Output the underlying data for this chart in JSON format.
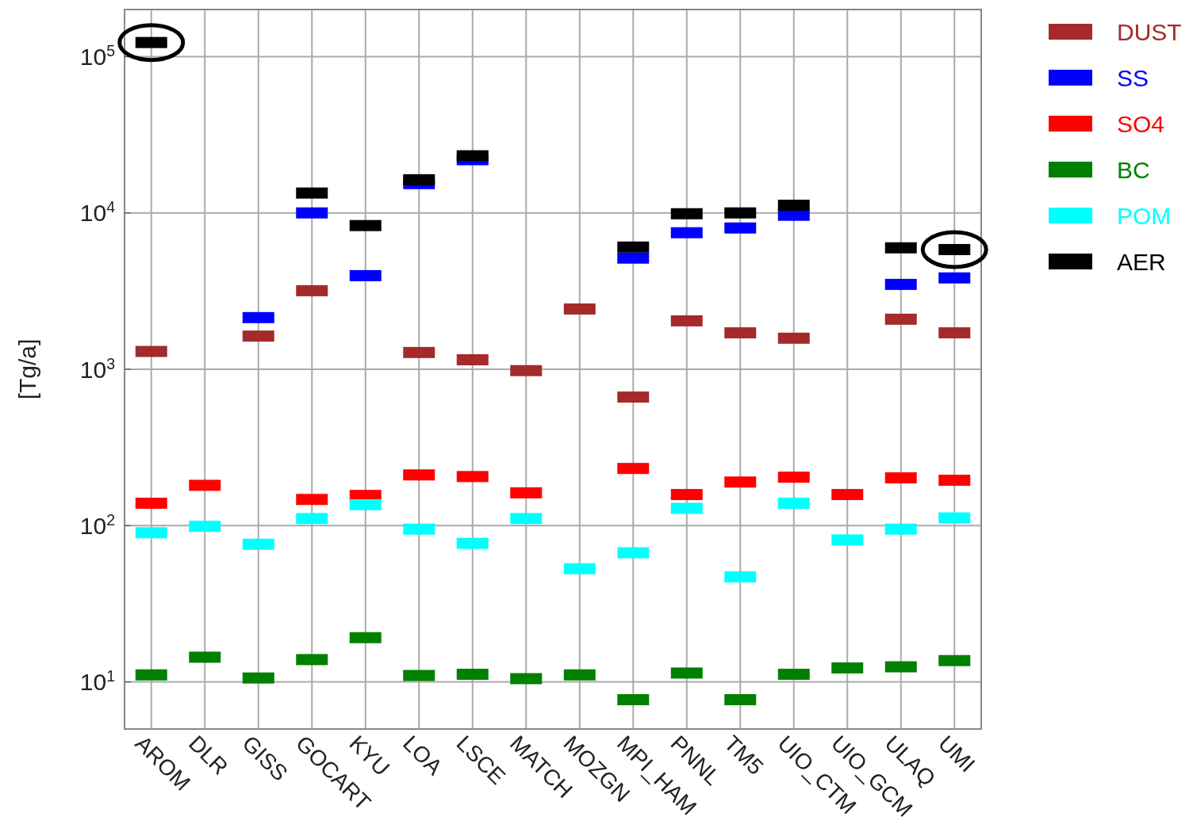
{
  "chart_data": {
    "type": "scatter",
    "ylabel": "[Tg/a]",
    "log": true,
    "grid": true,
    "legend": "right",
    "marker": "square",
    "categories": [
      "AROM",
      "DLR",
      "GISS",
      "GOCART",
      "KYU",
      "LOA",
      "LSCE",
      "MATCH",
      "MOZGN",
      "MPI_HAM",
      "PNNL",
      "TM5",
      "UIO_CTM",
      "UIO_GCM",
      "ULAQ",
      "UMI"
    ],
    "ylim": [
      5,
      200000
    ],
    "yticks": [
      {
        "value": 10,
        "label": "10$^{1}$"
      },
      {
        "value": 100,
        "label": "10$^{2}$"
      },
      {
        "value": 1000,
        "label": "10$^{3}$"
      },
      {
        "value": 10000,
        "label": "10$^{4}$"
      },
      {
        "value": 100000,
        "label": "10$^{5}$"
      }
    ],
    "series": [
      {
        "name": "DUST",
        "color": "#a52a2a",
        "values": [
          1300,
          null,
          1630,
          3180,
          null,
          1280,
          1150,
          980,
          2430,
          664,
          2040,
          1710,
          1580,
          null,
          2090,
          1710
        ]
      },
      {
        "name": "SS",
        "color": "#0000ff",
        "values": [
          null,
          null,
          2140,
          10000,
          3970,
          15400,
          21900,
          null,
          null,
          5140,
          7470,
          8010,
          9660,
          null,
          3490,
          3840
        ]
      },
      {
        "name": "SO4",
        "color": "#ff0000",
        "values": [
          139,
          181,
          null,
          147,
          156,
          211,
          206,
          162,
          null,
          232,
          158,
          190,
          204,
          158,
          202,
          195
        ]
      },
      {
        "name": "BC",
        "color": "#008000",
        "values": [
          11.1,
          14.4,
          10.6,
          13.9,
          19.2,
          11.0,
          11.2,
          10.5,
          11.1,
          7.7,
          11.4,
          7.7,
          11.2,
          12.3,
          12.5,
          13.7
        ]
      },
      {
        "name": "POM",
        "color": "#00ffff",
        "values": [
          90,
          99,
          76,
          111,
          136,
          95,
          77,
          111,
          53,
          67,
          129,
          47,
          139,
          81,
          95,
          112
        ]
      },
      {
        "name": "AER",
        "color": "#000000",
        "values": [
          123000,
          null,
          null,
          13400,
          8300,
          16300,
          23200,
          null,
          null,
          6050,
          9880,
          10000,
          11200,
          null,
          5980,
          5830
        ]
      }
    ]
  }
}
